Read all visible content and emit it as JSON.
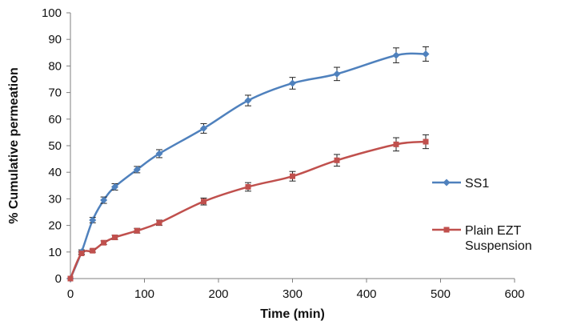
{
  "chart_data": {
    "type": "line",
    "title": "",
    "xlabel": "Time (min)",
    "ylabel": "% Cumulative permeation",
    "xlim": [
      0,
      600
    ],
    "ylim": [
      0,
      100
    ],
    "xticks": [
      0,
      100,
      200,
      300,
      400,
      500,
      600
    ],
    "yticks": [
      0,
      10,
      20,
      30,
      40,
      50,
      60,
      70,
      80,
      90,
      100
    ],
    "grid": false,
    "legend_position": "right",
    "series": [
      {
        "name": "SS1",
        "color": "#4F81BD",
        "marker": "diamond",
        "x": [
          0,
          15,
          30,
          45,
          60,
          90,
          120,
          180,
          240,
          300,
          360,
          440,
          480
        ],
        "y": [
          0,
          10,
          22,
          29.5,
          34.5,
          41,
          47,
          56.5,
          67,
          73.5,
          77,
          84,
          84.5
        ],
        "error": [
          0,
          0.8,
          1.0,
          1.2,
          1.2,
          1.2,
          1.5,
          1.8,
          2.0,
          2.2,
          2.5,
          2.8,
          2.7
        ]
      },
      {
        "name": "Plain EZT Suspension",
        "name_lines": [
          "Plain EZT",
          "Suspension"
        ],
        "color": "#C0504D",
        "marker": "square",
        "x": [
          0,
          15,
          30,
          45,
          60,
          90,
          120,
          180,
          240,
          300,
          360,
          440,
          480
        ],
        "y": [
          0,
          9.5,
          10.5,
          13.5,
          15.5,
          18,
          21,
          29,
          34.5,
          38.5,
          44.5,
          50.5,
          51.5
        ],
        "error": [
          0,
          0.5,
          0.6,
          0.7,
          0.8,
          0.9,
          1.0,
          1.3,
          1.6,
          1.8,
          2.2,
          2.5,
          2.6
        ]
      }
    ]
  }
}
